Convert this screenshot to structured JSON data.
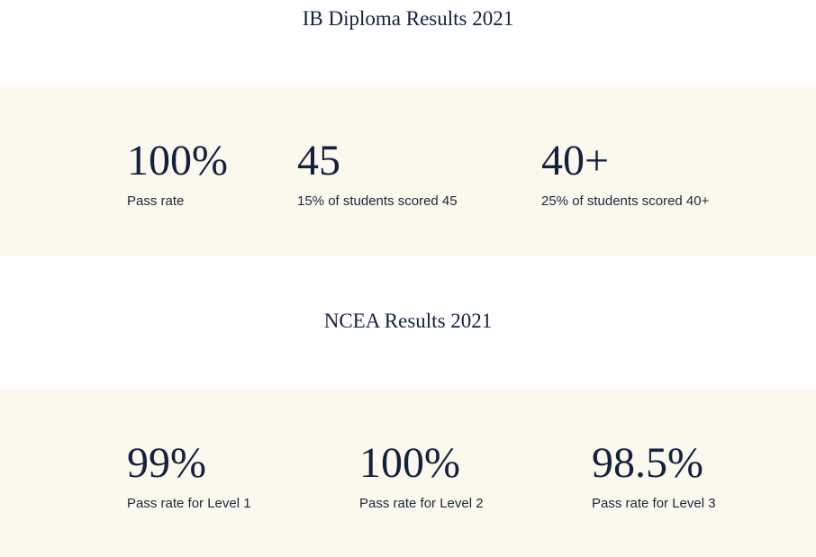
{
  "ib": {
    "title": "IB Diploma Results 2021",
    "stats": [
      {
        "value": "100%",
        "label": "Pass rate"
      },
      {
        "value": "45",
        "label": "15% of students scored 45"
      },
      {
        "value": "40+",
        "label": "25% of students scored 40+"
      }
    ]
  },
  "ncea": {
    "title": "NCEA Results 2021",
    "stats": [
      {
        "value": "99%",
        "label": "Pass rate for Level 1"
      },
      {
        "value": "100%",
        "label": "Pass rate for Level 2"
      },
      {
        "value": "98.5%",
        "label": "Pass rate for Level 3"
      }
    ]
  },
  "colors": {
    "band_background": "#fbf9ee",
    "text_navy": "#14213d"
  }
}
